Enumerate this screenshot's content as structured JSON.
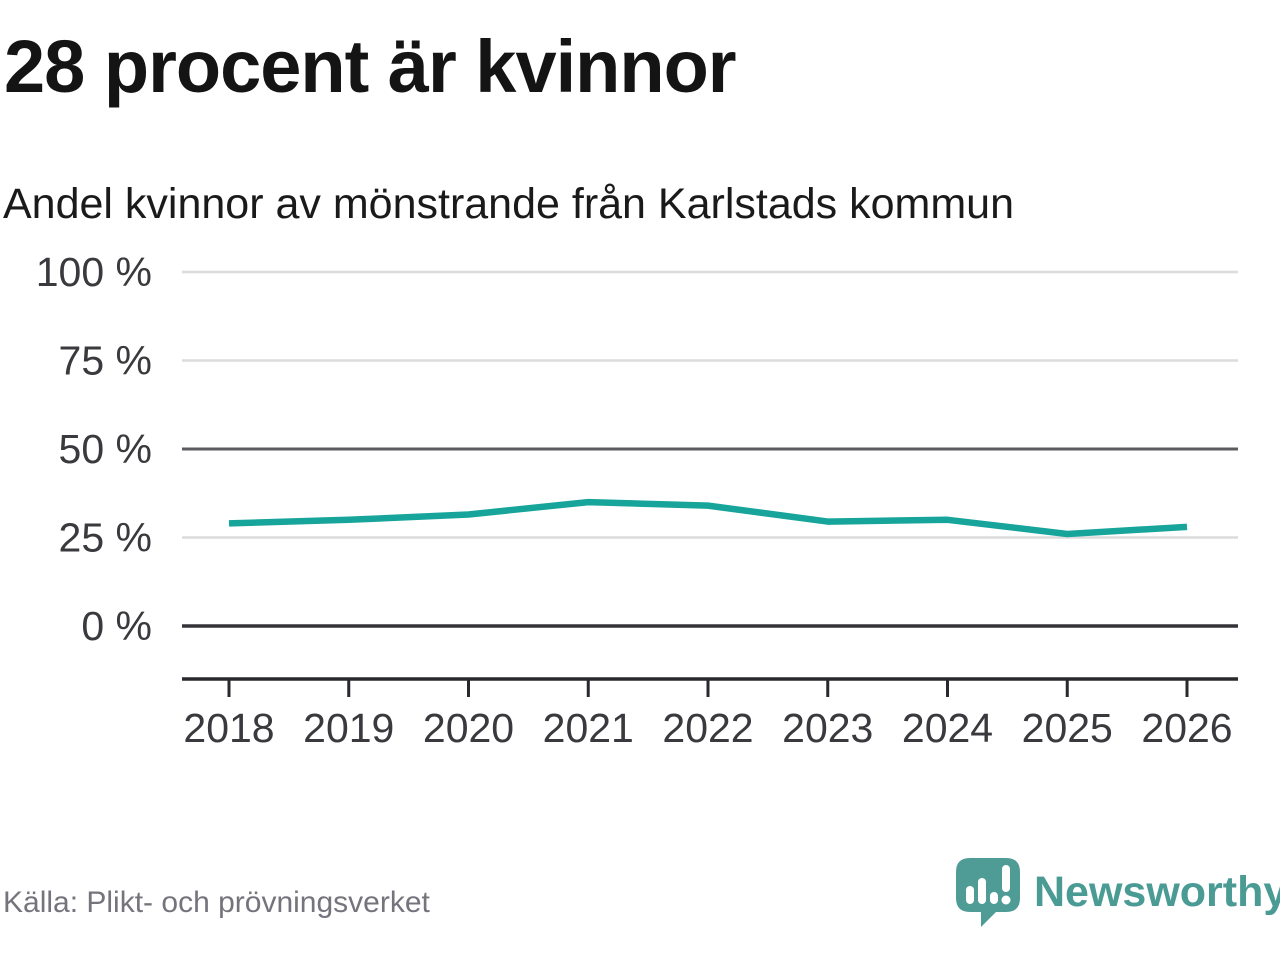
{
  "header": {
    "title": "28 procent är kvinnor",
    "subtitle": "Andel kvinnor av mönstrande från Karlstads kommun"
  },
  "footer": {
    "source": "Källa: Plikt- och prövningsverket",
    "brand": "Newsworthy",
    "brand_icon": "speech-bubble-bar-chart-exclamation"
  },
  "colors": {
    "line": "#16a49b",
    "grid_light": "#dcdcdc",
    "grid_mid": "#5b5b60",
    "grid_zero": "#333338",
    "axis": "#28282d",
    "tick_label": "#3a3a3e",
    "title_text": "#141414",
    "source_text": "#75747d",
    "brand_teal": "#4b9b95"
  },
  "chart_data": {
    "type": "line",
    "title": "28 procent är kvinnor",
    "subtitle": "Andel kvinnor av mönstrande från Karlstads kommun",
    "source": "Källa: Plikt- och prövningsverket",
    "x": [
      2018,
      2019,
      2020,
      2021,
      2022,
      2023,
      2024,
      2025,
      2026
    ],
    "series": [
      {
        "name": "Andel kvinnor av mönstrande",
        "values": [
          29,
          30,
          31.5,
          35,
          34,
          29.5,
          30,
          26,
          28
        ],
        "color": "#16a49b"
      }
    ],
    "unit": "%",
    "ylim": [
      0,
      100
    ],
    "yticks": [
      {
        "value": 100,
        "label": "100 %"
      },
      {
        "value": 75,
        "label": "75 %"
      },
      {
        "value": 50,
        "label": "50 %"
      },
      {
        "value": 25,
        "label": "25 %"
      },
      {
        "value": 0,
        "label": "0 %"
      }
    ],
    "grid": "horizontal",
    "emphasized_gridlines": [
      50,
      0
    ],
    "legend": "none"
  }
}
